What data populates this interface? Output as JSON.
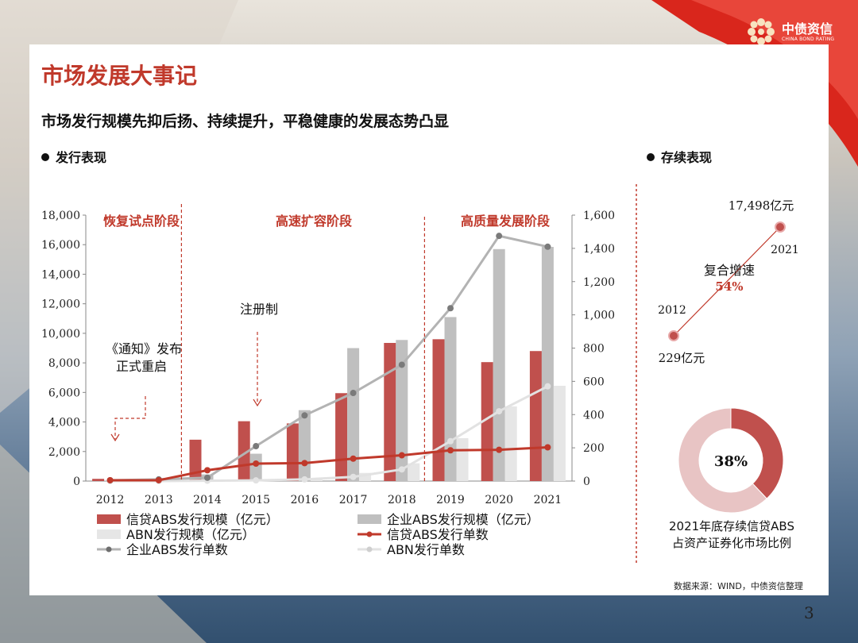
{
  "header": {
    "title": "市场发展大事记",
    "subtitle": "市场发行规模先抑后扬、持续提升，平稳健康的发展态势凸显",
    "logo_cn": "中债资信",
    "logo_en": "CHINA BOND RATING"
  },
  "sections": {
    "issuance": "发行表现",
    "outstanding": "存续表现"
  },
  "chart_data": [
    {
      "type": "bar+line",
      "categories": [
        "2012",
        "2013",
        "2014",
        "2015",
        "2016",
        "2017",
        "2018",
        "2019",
        "2020",
        "2021"
      ],
      "left_axis": {
        "ylim": [
          0,
          18000
        ],
        "ticks": [
          "0",
          "2,000",
          "4,000",
          "6,000",
          "8,000",
          "10,000",
          "12,000",
          "14,000",
          "16,000",
          "18,000"
        ]
      },
      "right_axis": {
        "ylim": [
          0,
          1600
        ],
        "ticks": [
          "0",
          "200",
          "400",
          "600",
          "800",
          "1,000",
          "1,200",
          "1,400",
          "1,600"
        ]
      },
      "bar_series": [
        {
          "name": "信贷ABS发行规模（亿元）",
          "color": "#c0504d",
          "values": [
            150,
            150,
            2800,
            4050,
            3900,
            5950,
            9350,
            9600,
            8050,
            8800
          ]
        },
        {
          "name": "企业ABS发行规模（亿元）",
          "color": "#bfbfbf",
          "values": [
            10,
            30,
            450,
            1850,
            4800,
            9000,
            9550,
            11100,
            15700,
            15850
          ]
        },
        {
          "name": "ABN发行规模（亿元）",
          "color": "#e6e6e6",
          "values": [
            0,
            0,
            5,
            10,
            150,
            550,
            1200,
            2900,
            5050,
            6450
          ]
        }
      ],
      "line_series": [
        {
          "name": "信贷ABS发行单数",
          "color": "#c0392b",
          "values": [
            5,
            5,
            65,
            105,
            108,
            135,
            155,
            185,
            188,
            203
          ]
        },
        {
          "name": "企业ABS发行单数",
          "color": "#b3b3b3",
          "values": [
            5,
            10,
            20,
            210,
            395,
            530,
            700,
            1040,
            1475,
            1410
          ]
        },
        {
          "name": "ABN发行单数",
          "color": "#e2e2e2",
          "values": [
            0,
            0,
            2,
            4,
            10,
            25,
            70,
            240,
            420,
            570
          ]
        }
      ],
      "phases": [
        "恢复试点阶段",
        "高速扩容阶段",
        "高质量发展阶段"
      ],
      "annotations": {
        "notice": "《通知》发布",
        "notice2": "正式重启",
        "registration": "注册制"
      }
    },
    {
      "type": "line",
      "x": [
        "2012",
        "2021"
      ],
      "values_label": [
        "229亿元",
        "17,498亿元"
      ],
      "growth_label": "复合增速",
      "growth_value": "54%"
    },
    {
      "type": "pie",
      "values": [
        38,
        62
      ],
      "center_label": "38%",
      "caption_line1": "2021年底存续信贷ABS",
      "caption_line2": "占资产证券化市场比例",
      "colors": [
        "#c0504d",
        "#e8c4c4"
      ]
    }
  ],
  "footer": {
    "source": "数据来源：WIND，中债资信整理",
    "page": "3"
  }
}
